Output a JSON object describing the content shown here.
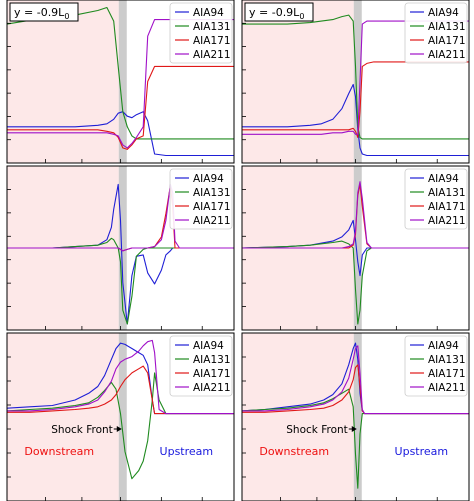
{
  "colors": {
    "AIA94": "#1f1fd6",
    "AIA131": "#1f8a1f",
    "AIA171": "#e01818",
    "AIA211": "#a010c8",
    "downstream_bg": "#fde8e8",
    "shock_band": "#cccccc",
    "downstream_text": "#ee1111",
    "upstream_text": "#1a1add"
  },
  "figure": {
    "row_label_text": "y = -0.9L",
    "row_label_sub": "0",
    "annotation_shock": "Shock Front",
    "label_downstream": "Downstream",
    "label_upstream": "Upstream"
  },
  "chart_data": [
    {
      "type": "line",
      "panel": "r1c1",
      "ylim": [
        0,
        1
      ],
      "row_label": true,
      "shock_x": 0.51,
      "x": [
        0,
        0.08,
        0.2,
        0.3,
        0.4,
        0.44,
        0.47,
        0.49,
        0.51,
        0.53,
        0.55,
        0.57,
        0.6,
        0.62,
        0.65,
        0.7,
        0.8,
        0.9,
        1.0
      ],
      "series": [
        {
          "name": "AIA94",
          "values": [
            0.2,
            0.2,
            0.2,
            0.2,
            0.21,
            0.22,
            0.25,
            0.29,
            0.3,
            0.27,
            0.26,
            0.28,
            0.3,
            0.24,
            0.02,
            0.01,
            0.01,
            0.01,
            0.01
          ]
        },
        {
          "name": "AIA131",
          "values": [
            0.88,
            0.9,
            0.92,
            0.94,
            0.97,
            0.99,
            0.9,
            0.6,
            0.3,
            0.2,
            0.14,
            0.12,
            0.12,
            0.12,
            0.12,
            0.12,
            0.12,
            0.12,
            0.12
          ]
        },
        {
          "name": "AIA171",
          "values": [
            0.18,
            0.18,
            0.18,
            0.18,
            0.18,
            0.17,
            0.16,
            0.13,
            0.06,
            0.05,
            0.08,
            0.12,
            0.14,
            0.5,
            0.6,
            0.6,
            0.6,
            0.6,
            0.6
          ]
        },
        {
          "name": "AIA211",
          "values": [
            0.16,
            0.16,
            0.16,
            0.16,
            0.16,
            0.16,
            0.15,
            0.14,
            0.08,
            0.06,
            0.09,
            0.13,
            0.2,
            0.8,
            0.91,
            0.91,
            0.91,
            0.91,
            0.91
          ]
        }
      ]
    },
    {
      "type": "line",
      "panel": "r1c2",
      "ylim": [
        0,
        1
      ],
      "row_label": true,
      "shock_x": 0.51,
      "x": [
        0,
        0.1,
        0.2,
        0.3,
        0.35,
        0.4,
        0.44,
        0.47,
        0.49,
        0.5,
        0.51,
        0.52,
        0.53,
        0.55,
        0.58,
        0.7,
        0.8,
        0.9,
        1.0
      ],
      "series": [
        {
          "name": "AIA94",
          "values": [
            0.2,
            0.2,
            0.2,
            0.21,
            0.22,
            0.25,
            0.32,
            0.42,
            0.48,
            0.4,
            0.18,
            0.06,
            0.02,
            0.01,
            0.01,
            0.01,
            0.01,
            0.01,
            0.01
          ]
        },
        {
          "name": "AIA131",
          "values": [
            0.88,
            0.88,
            0.88,
            0.89,
            0.9,
            0.91,
            0.93,
            0.94,
            0.9,
            0.6,
            0.2,
            0.13,
            0.12,
            0.12,
            0.12,
            0.12,
            0.12,
            0.12,
            0.12
          ]
        },
        {
          "name": "AIA171",
          "values": [
            0.18,
            0.18,
            0.18,
            0.18,
            0.18,
            0.18,
            0.18,
            0.18,
            0.19,
            0.17,
            0.13,
            0.3,
            0.6,
            0.62,
            0.63,
            0.63,
            0.63,
            0.63,
            0.63
          ]
        },
        {
          "name": "AIA211",
          "values": [
            0.15,
            0.15,
            0.15,
            0.15,
            0.15,
            0.16,
            0.16,
            0.17,
            0.17,
            0.15,
            0.15,
            0.5,
            0.88,
            0.9,
            0.9,
            0.9,
            0.9,
            0.9,
            0.9
          ]
        }
      ]
    },
    {
      "type": "line",
      "panel": "r2c1",
      "ylim": [
        -0.55,
        0.55
      ],
      "shock_x": 0.51,
      "x": [
        0,
        0.2,
        0.3,
        0.4,
        0.44,
        0.46,
        0.47,
        0.49,
        0.5,
        0.51,
        0.53,
        0.55,
        0.57,
        0.6,
        0.62,
        0.65,
        0.68,
        0.7,
        0.72,
        0.73,
        0.74,
        0.76,
        0.8,
        0.84,
        1.0
      ],
      "series": [
        {
          "name": "AIA94",
          "values": [
            0,
            0,
            0.01,
            0.02,
            0.06,
            0.15,
            0.28,
            0.46,
            0.2,
            -0.25,
            -0.55,
            -0.2,
            -0.06,
            -0.05,
            -0.18,
            -0.26,
            -0.16,
            -0.05,
            -0.02,
            0.0,
            0.0,
            0.0,
            0.0,
            0.0,
            0.0
          ]
        },
        {
          "name": "AIA131",
          "values": [
            0,
            0,
            0.01,
            0.02,
            0.04,
            0.07,
            0.06,
            0.0,
            -0.1,
            -0.45,
            -0.55,
            -0.35,
            -0.06,
            -0.01,
            0.0,
            0.0,
            0.0,
            0.0,
            0.0,
            0.0,
            0.0,
            0.0,
            0.0,
            0.0,
            0.0
          ]
        },
        {
          "name": "AIA171",
          "values": [
            0,
            0,
            0,
            0,
            0,
            0,
            0,
            0,
            -0.01,
            -0.02,
            -0.01,
            0.0,
            0.0,
            0.0,
            0.0,
            0.01,
            0.08,
            0.25,
            0.45,
            0.3,
            0.0,
            0.0,
            0.0,
            0.0,
            0.0
          ]
        },
        {
          "name": "AIA211",
          "values": [
            0,
            0,
            0,
            0,
            0,
            0,
            0,
            0,
            -0.01,
            -0.02,
            -0.01,
            0.0,
            0.0,
            0.0,
            0.0,
            0.01,
            0.06,
            0.2,
            0.46,
            0.4,
            0.05,
            0.0,
            0.0,
            0.0,
            0.0
          ]
        }
      ]
    },
    {
      "type": "line",
      "panel": "r2c2",
      "ylim": [
        -0.55,
        0.55
      ],
      "shock_x": 0.51,
      "x": [
        0,
        0.2,
        0.3,
        0.4,
        0.44,
        0.47,
        0.49,
        0.5,
        0.51,
        0.52,
        0.53,
        0.55,
        0.57,
        0.6,
        0.7,
        1.0
      ],
      "series": [
        {
          "name": "AIA94",
          "values": [
            0,
            0.01,
            0.02,
            0.05,
            0.08,
            0.13,
            0.2,
            0.06,
            -0.1,
            -0.2,
            -0.05,
            0.0,
            0.0,
            0.0,
            0.0,
            0.0
          ]
        },
        {
          "name": "AIA131",
          "values": [
            0,
            0.01,
            0.02,
            0.04,
            0.05,
            0.03,
            0.0,
            -0.3,
            -0.55,
            -0.45,
            -0.2,
            -0.02,
            0.0,
            0.0,
            0.0,
            0.0
          ]
        },
        {
          "name": "AIA171",
          "values": [
            0,
            0,
            0,
            0,
            0.0,
            0.0,
            0.02,
            0.1,
            0.38,
            0.46,
            0.3,
            0.03,
            0.0,
            0.0,
            0.0,
            0.0
          ]
        },
        {
          "name": "AIA211",
          "values": [
            0,
            0,
            0,
            0,
            0.0,
            0.01,
            0.03,
            0.12,
            0.4,
            0.48,
            0.36,
            0.04,
            0.0,
            0.0,
            0.0,
            0.0
          ]
        }
      ]
    },
    {
      "type": "line",
      "panel": "r3c1",
      "ylim": [
        -0.6,
        0.55
      ],
      "shock_x": 0.51,
      "annotations": true,
      "x": [
        0,
        0.1,
        0.2,
        0.3,
        0.36,
        0.4,
        0.43,
        0.46,
        0.48,
        0.5,
        0.52,
        0.55,
        0.58,
        0.6,
        0.62,
        0.64,
        0.65,
        0.67,
        0.7,
        0.75,
        1.0
      ],
      "series": [
        {
          "name": "AIA94",
          "values": [
            0.04,
            0.05,
            0.06,
            0.1,
            0.15,
            0.2,
            0.28,
            0.4,
            0.48,
            0.52,
            0.51,
            0.48,
            0.45,
            0.43,
            0.36,
            0.1,
            0.0,
            0.0,
            0.0,
            0.0,
            0.0
          ]
        },
        {
          "name": "AIA131",
          "values": [
            0.02,
            0.03,
            0.04,
            0.06,
            0.08,
            0.12,
            0.17,
            0.23,
            0.18,
            0.0,
            -0.28,
            -0.48,
            -0.42,
            -0.35,
            -0.2,
            0.1,
            0.3,
            0.1,
            0.0,
            0.0,
            0.0
          ]
        },
        {
          "name": "AIA171",
          "values": [
            0.01,
            0.01,
            0.02,
            0.03,
            0.04,
            0.05,
            0.07,
            0.1,
            0.14,
            0.2,
            0.25,
            0.3,
            0.33,
            0.35,
            0.3,
            0.1,
            0.0,
            0.0,
            0.0,
            0.0,
            0.0
          ]
        },
        {
          "name": "AIA211",
          "values": [
            0.02,
            0.02,
            0.03,
            0.05,
            0.07,
            0.1,
            0.16,
            0.24,
            0.33,
            0.38,
            0.4,
            0.42,
            0.46,
            0.5,
            0.53,
            0.54,
            0.45,
            0.03,
            0.0,
            0.0,
            0.0
          ]
        }
      ]
    },
    {
      "type": "line",
      "panel": "r3c2",
      "ylim": [
        -0.6,
        0.55
      ],
      "shock_x": 0.51,
      "annotations": true,
      "x": [
        0,
        0.1,
        0.2,
        0.3,
        0.36,
        0.4,
        0.44,
        0.47,
        0.49,
        0.5,
        0.51,
        0.52,
        0.53,
        0.54,
        0.56,
        0.6,
        1.0
      ],
      "series": [
        {
          "name": "AIA94",
          "values": [
            0.02,
            0.03,
            0.05,
            0.07,
            0.1,
            0.14,
            0.22,
            0.36,
            0.48,
            0.52,
            0.4,
            0.15,
            0.02,
            0.0,
            0.0,
            0.0,
            0.0
          ]
        },
        {
          "name": "AIA131",
          "values": [
            0.02,
            0.03,
            0.04,
            0.06,
            0.08,
            0.11,
            0.15,
            0.18,
            0.05,
            -0.3,
            -0.55,
            -0.15,
            0.0,
            0.0,
            0.0,
            0.0,
            0.0
          ]
        },
        {
          "name": "AIA171",
          "values": [
            0.01,
            0.01,
            0.02,
            0.03,
            0.04,
            0.06,
            0.1,
            0.16,
            0.25,
            0.34,
            0.36,
            0.2,
            0.02,
            0.0,
            0.0,
            0.0,
            0.0
          ]
        },
        {
          "name": "AIA211",
          "values": [
            0.02,
            0.02,
            0.03,
            0.05,
            0.07,
            0.1,
            0.16,
            0.26,
            0.4,
            0.48,
            0.5,
            0.3,
            0.03,
            0.0,
            0.0,
            0.0,
            0.0
          ]
        }
      ]
    }
  ]
}
